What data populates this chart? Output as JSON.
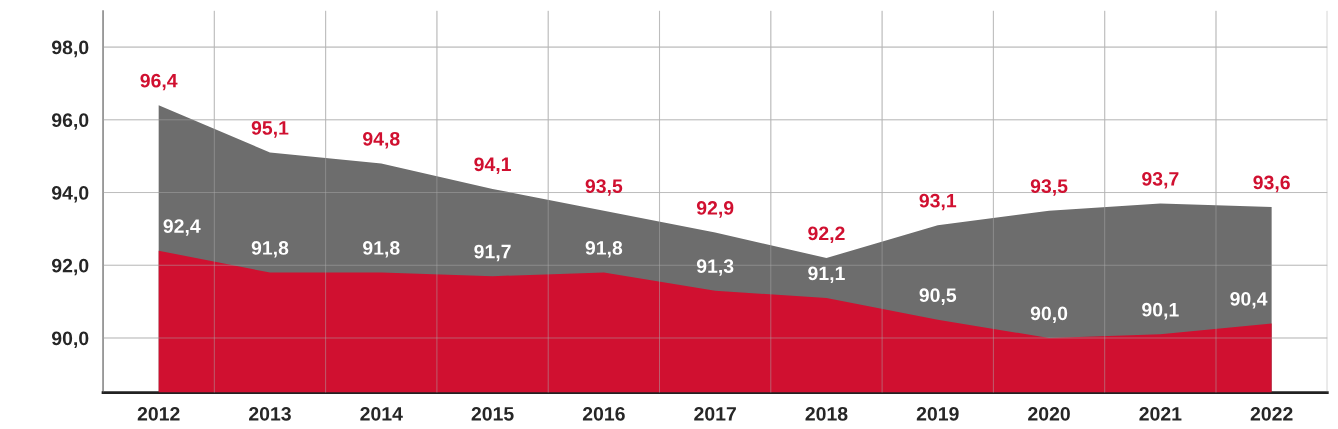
{
  "chart_data": {
    "type": "area",
    "categories": [
      "2012",
      "2013",
      "2014",
      "2015",
      "2016",
      "2017",
      "2018",
      "2019",
      "2020",
      "2021",
      "2022"
    ],
    "series": [
      {
        "color": "#6d6d6d",
        "values": [
          96.4,
          95.1,
          94.8,
          94.1,
          93.5,
          92.9,
          92.2,
          93.1,
          93.5,
          93.7,
          93.6
        ],
        "value_labels": [
          "96,4",
          "95,1",
          "94,8",
          "94,1",
          "93,5",
          "92,9",
          "92,2",
          "93,1",
          "93,5",
          "93,7",
          "93,6"
        ]
      },
      {
        "color": "#d01030",
        "values": [
          92.4,
          91.8,
          91.8,
          91.7,
          91.8,
          91.3,
          91.1,
          90.5,
          90.0,
          90.1,
          90.4
        ],
        "value_labels": [
          "92,4",
          "91,8",
          "91,8",
          "91,7",
          "91,8",
          "91,3",
          "91,1",
          "90,5",
          "90,0",
          "90,1",
          "90,4"
        ]
      }
    ],
    "ylim": [
      88.5,
      99.0
    ],
    "yticks": [
      {
        "value": 90,
        "label": "90,0"
      },
      {
        "value": 92,
        "label": "92,0"
      },
      {
        "value": 94,
        "label": "94,0"
      },
      {
        "value": 96,
        "label": "96,0"
      },
      {
        "value": 98,
        "label": "98,0"
      }
    ],
    "grid": true
  }
}
